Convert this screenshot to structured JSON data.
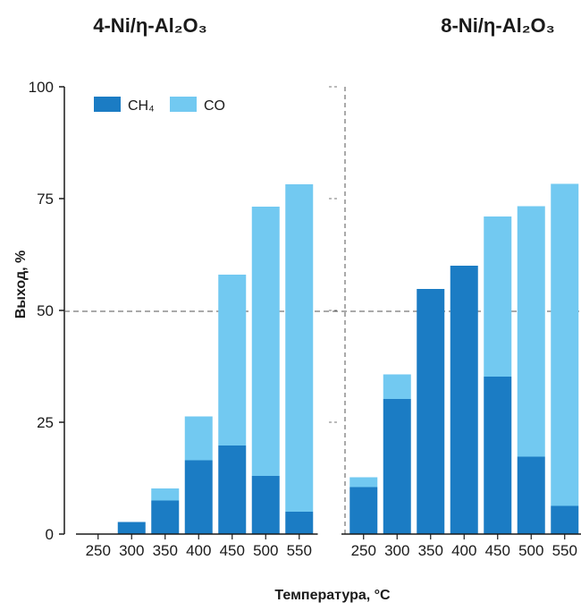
{
  "chart_data": [
    {
      "type": "bar",
      "stacked": true,
      "title": "4-Ni/η-Al₂O₃",
      "categories": [
        "250",
        "300",
        "350",
        "400",
        "450",
        "500",
        "550"
      ],
      "series": [
        {
          "name": "CH₄",
          "values": [
            0,
            2.7,
            7.5,
            16.5,
            19.8,
            13,
            5
          ]
        },
        {
          "name": "CO",
          "values": [
            0,
            0,
            2.7,
            9.8,
            38.2,
            60.2,
            73.2
          ]
        }
      ],
      "ylim": [
        0,
        100
      ]
    },
    {
      "type": "bar",
      "stacked": true,
      "title": "8-Ni/η-Al₂O₃",
      "categories": [
        "250",
        "300",
        "350",
        "400",
        "450",
        "500",
        "550"
      ],
      "series": [
        {
          "name": "CH₄",
          "values": [
            10.5,
            30.2,
            54.8,
            60,
            35.2,
            17.3,
            6.3
          ]
        },
        {
          "name": "CO",
          "values": [
            2.2,
            5.5,
            0,
            0,
            35.8,
            56,
            72
          ]
        }
      ],
      "ylim": [
        0,
        100
      ]
    }
  ],
  "y_axis": {
    "label": "Выход, %",
    "ticks": [
      "0",
      "25",
      "50",
      "75",
      "100"
    ],
    "tick_values": [
      0,
      25,
      50,
      75,
      100
    ]
  },
  "x_axis": {
    "label": "Температура, °C"
  },
  "legend": {
    "placement": "top-left",
    "items": [
      {
        "label": "CH₄",
        "color": "#1b7cc4"
      },
      {
        "label": "CO",
        "color": "#72c9f1"
      }
    ]
  },
  "reference_line": {
    "value": 50,
    "style": "dashed"
  },
  "divider": {
    "style": "dashed"
  }
}
